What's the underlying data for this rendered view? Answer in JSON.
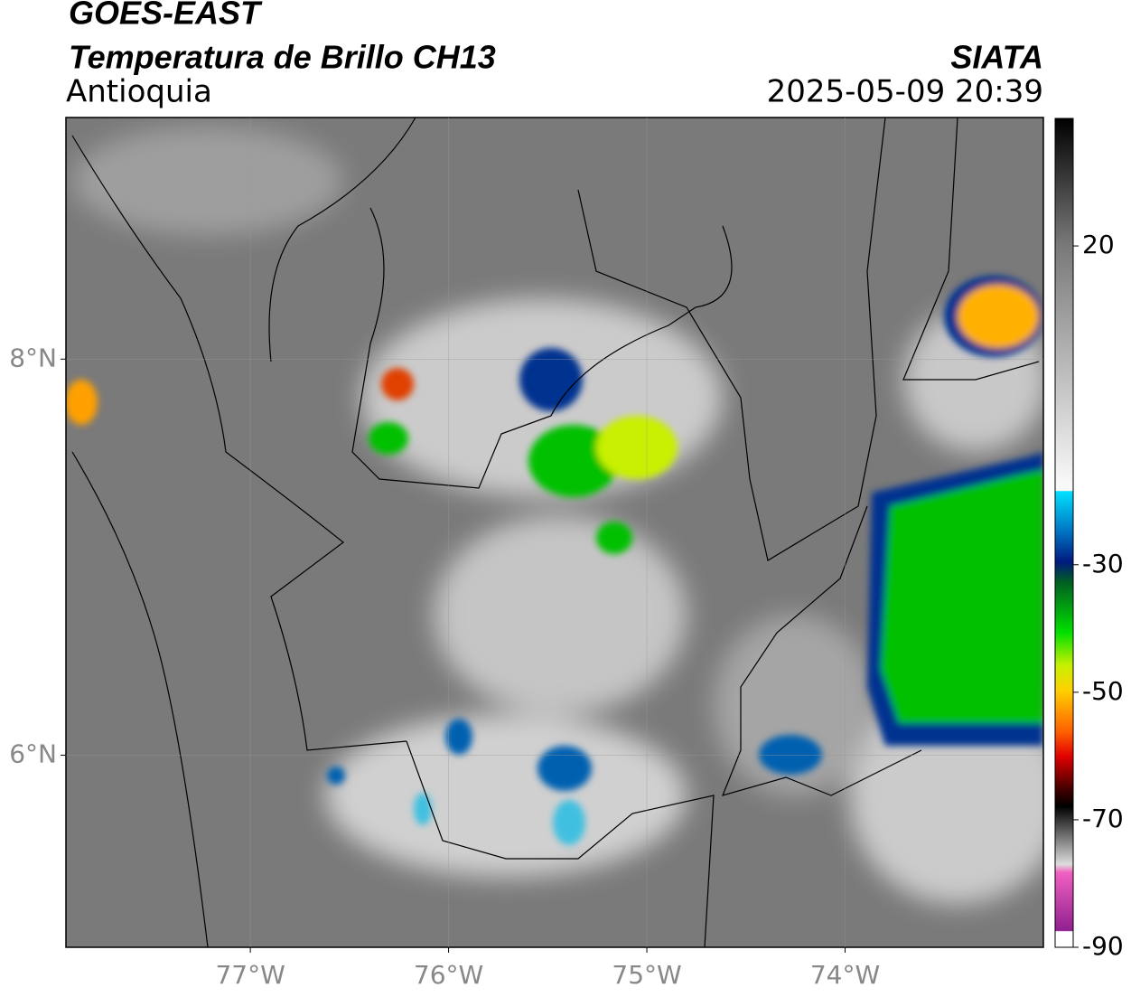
{
  "header": {
    "title": "GOES-EAST",
    "subtitle": "Temperatura de Brillo CH13",
    "region": "Antioquia",
    "agency": "SIATA",
    "datetime": "2025-05-09 20:39"
  },
  "map": {
    "xlim": [
      -77.93,
      -73.0
    ],
    "ylim": [
      5.03,
      9.22
    ],
    "xticks": [
      {
        "value": -77,
        "label": "77°W"
      },
      {
        "value": -76,
        "label": "76°W"
      },
      {
        "value": -75,
        "label": "75°W"
      },
      {
        "value": -74,
        "label": "74°W"
      }
    ],
    "yticks": [
      {
        "value": 8,
        "label": "8°N"
      },
      {
        "value": 6,
        "label": "6°N"
      }
    ],
    "grid": true
  },
  "colorbar": {
    "lim": [
      -90,
      40
    ],
    "ticks": [
      20,
      -30,
      -50,
      -70,
      -90
    ]
  }
}
